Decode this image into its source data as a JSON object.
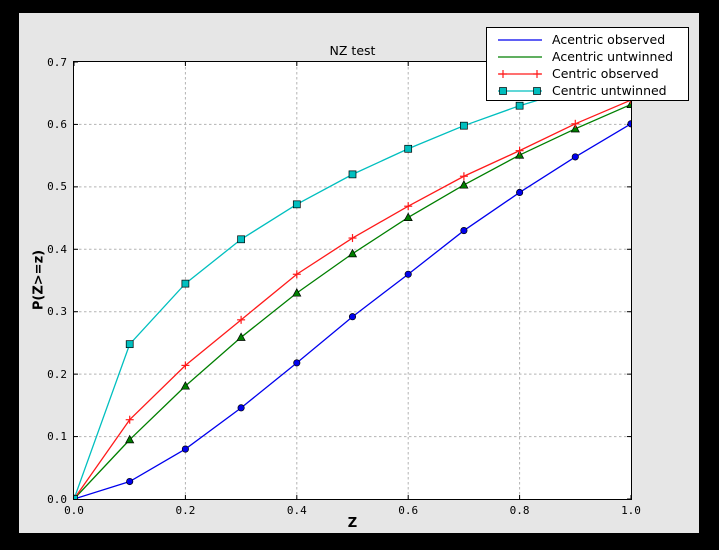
{
  "figure": {
    "outer_background": "#000000",
    "background": "#e6e6e6",
    "plot_background": "#ffffff",
    "grid_color": "#b3b3b3",
    "frame_color": "#000000"
  },
  "chart_data": {
    "type": "line",
    "title": "NZ test",
    "xlabel": "Z",
    "ylabel": "P(Z>=z)",
    "xlim": [
      0.0,
      1.0
    ],
    "ylim": [
      0.0,
      0.7
    ],
    "x_ticks": [
      0.0,
      0.2,
      0.4,
      0.6,
      0.8,
      1.0
    ],
    "x_tick_labels": [
      "0.0",
      "0.2",
      "0.4",
      "0.6",
      "0.8",
      "1.0"
    ],
    "y_ticks": [
      0.0,
      0.1,
      0.2,
      0.3,
      0.4,
      0.5,
      0.6,
      0.7
    ],
    "y_tick_labels": [
      "0.0",
      "0.1",
      "0.2",
      "0.3",
      "0.4",
      "0.5",
      "0.6",
      "0.7"
    ],
    "grid": true,
    "grid_style": "dashed",
    "legend_position": "upper right",
    "x": [
      0.0,
      0.1,
      0.2,
      0.3,
      0.4,
      0.5,
      0.6,
      0.7,
      0.8,
      0.9,
      1.0
    ],
    "series": [
      {
        "name": "Acentric observed",
        "color": "#0000ee",
        "marker": "circle",
        "values": [
          0.0,
          0.028,
          0.08,
          0.146,
          0.218,
          0.292,
          0.36,
          0.43,
          0.491,
          0.548,
          0.601
        ]
      },
      {
        "name": "Acentric untwinned",
        "color": "#007f00",
        "marker": "triangle",
        "values": [
          0.0,
          0.095,
          0.181,
          0.259,
          0.33,
          0.393,
          0.451,
          0.503,
          0.551,
          0.593,
          0.632
        ]
      },
      {
        "name": "Centric observed",
        "color": "#ff1a1a",
        "marker": "plus",
        "values": [
          0.0,
          0.127,
          0.214,
          0.287,
          0.36,
          0.418,
          0.469,
          0.517,
          0.558,
          0.601,
          0.639
        ]
      },
      {
        "name": "Centric untwinned",
        "color": "#00bfbf",
        "marker": "square",
        "values": [
          0.0,
          0.248,
          0.345,
          0.416,
          0.472,
          0.52,
          0.561,
          0.598,
          0.63,
          0.657,
          0.683
        ]
      }
    ]
  }
}
